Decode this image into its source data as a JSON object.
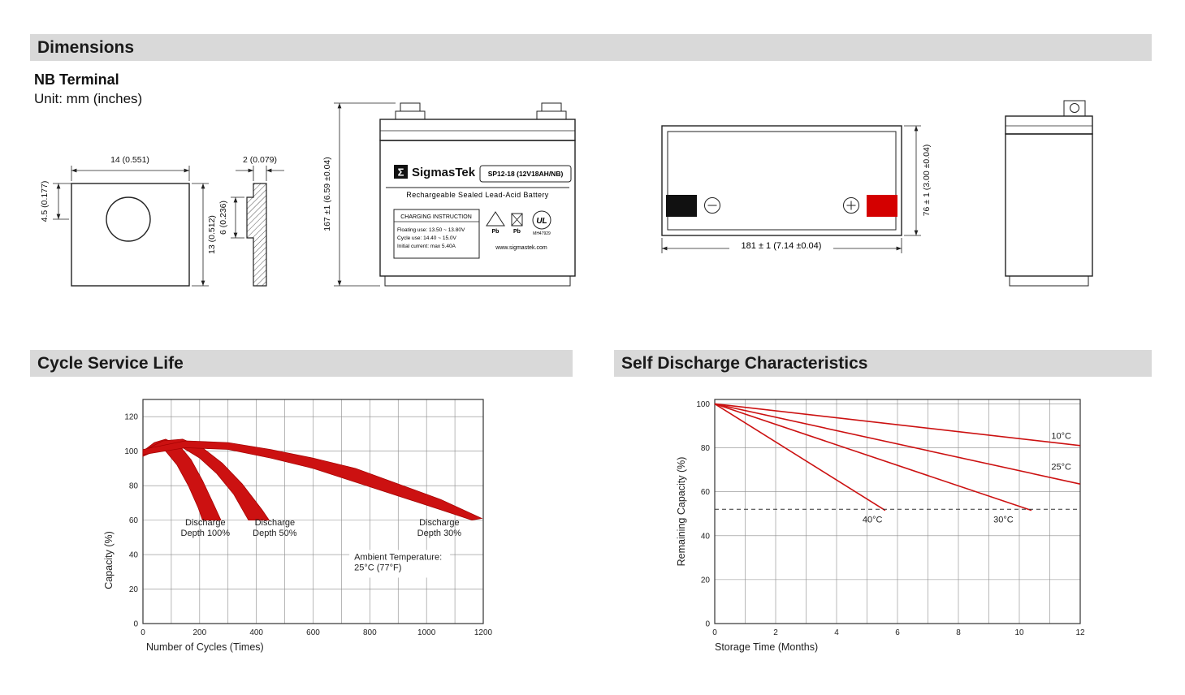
{
  "page": {
    "colors": {
      "header_bg": "#d9d9d9",
      "accent_red": "#cc1111",
      "terminal_red": "#d40000",
      "terminal_black": "#111111"
    }
  },
  "sections": {
    "dimensions": {
      "title": "Dimensions"
    },
    "cycle": {
      "title": "Cycle Service Life"
    },
    "self_discharge": {
      "title": "Self Discharge Characteristics"
    }
  },
  "dimensions_block": {
    "terminal_title": "NB Terminal",
    "unit_note": "Unit: mm (inches)",
    "front_terminal": {
      "width": "14 (0.551)",
      "hole_offset": "4.5 (0.177)",
      "height": "13 (0.512)"
    },
    "side_terminal": {
      "thickness": "2 (0.079)",
      "depth": "6 (0.236)"
    },
    "battery_front": {
      "height_dim": "167 ±1 (6.59 ±0.04)",
      "brand_sigma": "Σ",
      "brand": "SigmasTek",
      "model": "SP12-18 (12V18AH/NB)",
      "subtitle": "Rechargeable Sealed Lead-Acid Battery",
      "charging_title": "CHARGING INSTRUCTION",
      "charging_lines": [
        "Floating use: 13.50 ~ 13.80V",
        "Cycle use: 14.40 ~ 15.0V",
        "Initial current: max 5.40A"
      ],
      "pb_label": "Pb",
      "ul_mark": "UL",
      "ul_code": "MH47929",
      "website": "www.sigmastek.com"
    },
    "battery_top": {
      "width_dim": "181 ± 1 (7.14 ±0.04)",
      "depth_dim": "76 ± 1 (3.00 ±0.04)"
    }
  },
  "chart_data": [
    {
      "id": "cycle_service_life",
      "type": "area",
      "title": "Cycle Service Life",
      "xlabel": "Number of Cycles (Times)",
      "ylabel": "Capacity (%)",
      "xlim": [
        0,
        1200
      ],
      "ylim": [
        0,
        130
      ],
      "xticks": [
        0,
        200,
        400,
        600,
        800,
        1000,
        1200
      ],
      "yticks": [
        0,
        20,
        40,
        60,
        80,
        100,
        120
      ],
      "xgrid_step": 100,
      "ygrid_step": 20,
      "grid": true,
      "line_color": "#cc1111",
      "bands": [
        {
          "name": "Discharge Depth 100%",
          "upper": [
            [
              0,
              100
            ],
            [
              40,
              105
            ],
            [
              80,
              107
            ],
            [
              130,
              103
            ],
            [
              170,
              95
            ],
            [
              210,
              83
            ],
            [
              250,
              69
            ],
            [
              275,
              60
            ]
          ],
          "lower": [
            [
              0,
              97
            ],
            [
              40,
              101
            ],
            [
              80,
              100
            ],
            [
              120,
              92
            ],
            [
              160,
              80
            ],
            [
              195,
              67
            ],
            [
              210,
              60
            ]
          ]
        },
        {
          "name": "Discharge Depth 50%",
          "upper": [
            [
              0,
              100
            ],
            [
              70,
              106
            ],
            [
              140,
              107
            ],
            [
              210,
              102
            ],
            [
              280,
              93
            ],
            [
              350,
              81
            ],
            [
              420,
              66
            ],
            [
              445,
              60
            ]
          ],
          "lower": [
            [
              0,
              97
            ],
            [
              70,
              102
            ],
            [
              140,
              102
            ],
            [
              200,
              96
            ],
            [
              260,
              87
            ],
            [
              320,
              75
            ],
            [
              365,
              62
            ],
            [
              372,
              60
            ]
          ]
        },
        {
          "name": "Discharge Depth 30%",
          "upper": [
            [
              0,
              101
            ],
            [
              150,
              106
            ],
            [
              300,
              105
            ],
            [
              450,
              101
            ],
            [
              600,
              96
            ],
            [
              750,
              90
            ],
            [
              900,
              81
            ],
            [
              1050,
              72
            ],
            [
              1195,
              61
            ]
          ],
          "lower": [
            [
              0,
              98
            ],
            [
              150,
              102
            ],
            [
              300,
              101
            ],
            [
              450,
              96
            ],
            [
              600,
              90
            ],
            [
              750,
              82
            ],
            [
              900,
              74
            ],
            [
              1050,
              66
            ],
            [
              1160,
              60
            ]
          ]
        }
      ],
      "annotations": [
        {
          "lines": [
            "Discharge",
            "Depth 100%"
          ],
          "x": 220,
          "y": 57,
          "anchor": "middle",
          "bg": false
        },
        {
          "lines": [
            "Discharge",
            "Depth 50%"
          ],
          "x": 465,
          "y": 57,
          "anchor": "middle",
          "bg": false
        },
        {
          "lines": [
            "Discharge",
            "Depth 30%"
          ],
          "x": 1045,
          "y": 57,
          "anchor": "middle",
          "bg": false
        },
        {
          "lines": [
            "Ambient Temperature:",
            "25°C (77°F)"
          ],
          "x": 745,
          "y": 37,
          "anchor": "start",
          "bg": true
        }
      ]
    },
    {
      "id": "self_discharge",
      "type": "line",
      "title": "Self Discharge Characteristics",
      "xlabel": "Storage Time (Months)",
      "ylabel": "Remaining Capacity (%)",
      "xlim": [
        0,
        12
      ],
      "ylim": [
        0,
        102
      ],
      "xticks": [
        0,
        2,
        4,
        6,
        8,
        10,
        12
      ],
      "yticks": [
        0,
        20,
        40,
        60,
        80,
        100
      ],
      "xgrid_step": 1,
      "ygrid_step": 20,
      "grid": true,
      "line_color": "#cc1111",
      "series": [
        {
          "name": "10°C",
          "points": [
            [
              0,
              100
            ],
            [
              12,
              81
            ]
          ]
        },
        {
          "name": "25°C",
          "points": [
            [
              0,
              100
            ],
            [
              12,
              63.5
            ]
          ]
        },
        {
          "name": "30°C",
          "points": [
            [
              0,
              100
            ],
            [
              10.4,
              51.5
            ]
          ]
        },
        {
          "name": "40°C",
          "points": [
            [
              0,
              100
            ],
            [
              5.6,
              51.5
            ]
          ]
        }
      ],
      "ref_line": {
        "y": 52,
        "style": "dashed"
      },
      "annotations": [
        {
          "lines": [
            "10°C"
          ],
          "x": 11.05,
          "y": 84,
          "anchor": "start",
          "bg": false
        },
        {
          "lines": [
            "25°C"
          ],
          "x": 11.05,
          "y": 70,
          "anchor": "start",
          "bg": false
        },
        {
          "lines": [
            "40°C"
          ],
          "x": 4.85,
          "y": 46,
          "anchor": "start",
          "bg": false
        },
        {
          "lines": [
            "30°C"
          ],
          "x": 9.15,
          "y": 46,
          "anchor": "start",
          "bg": false
        }
      ]
    }
  ]
}
